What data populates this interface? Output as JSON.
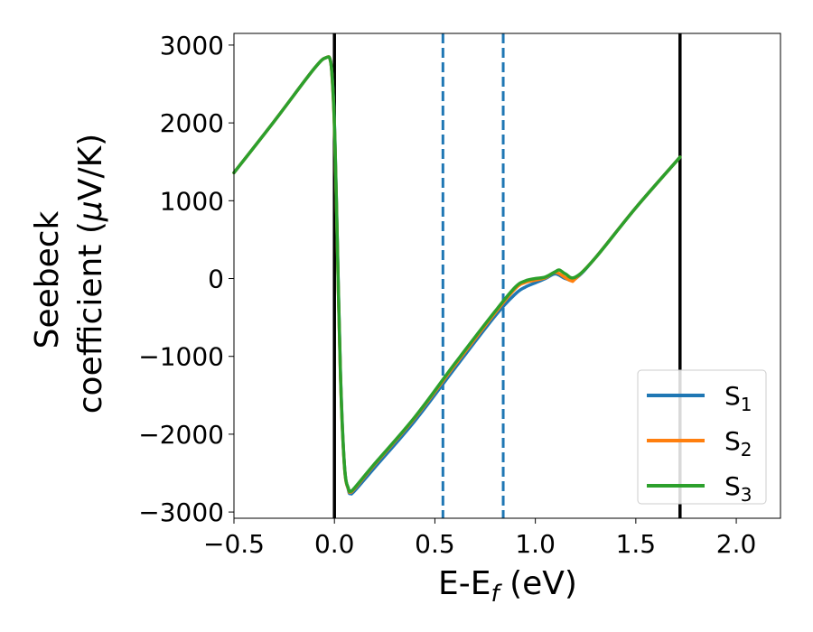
{
  "chart_data": {
    "type": "line",
    "xlabel": "E-E",
    "xlabel_sub": "f",
    "xlabel_unit": " (eV)",
    "ylabel_line1": "Seebeck",
    "ylabel_line2": "coefficient  (",
    "ylabel_mu": "μ",
    "ylabel_unit": "V/K)",
    "xlim": [
      -0.5,
      2.22
    ],
    "ylim": [
      -3080,
      3150
    ],
    "x_ticks": [
      -0.5,
      0.0,
      0.5,
      1.0,
      1.5,
      2.0
    ],
    "x_tick_labels": [
      "−0.5",
      "0.0",
      "0.5",
      "1.0",
      "1.5",
      "2.0"
    ],
    "y_ticks": [
      -3000,
      -2000,
      -1000,
      0,
      1000,
      2000,
      3000
    ],
    "y_tick_labels": [
      "−3000",
      "−2000",
      "−1000",
      "0",
      "1000",
      "2000",
      "3000"
    ],
    "vlines": [
      {
        "x": 0.0,
        "style": "solid",
        "color": "#000000"
      },
      {
        "x": 1.72,
        "style": "solid",
        "color": "#000000"
      },
      {
        "x": 0.54,
        "style": "dashed",
        "color": "#1f77b4"
      },
      {
        "x": 0.84,
        "style": "dashed",
        "color": "#1f77b4"
      }
    ],
    "legend": {
      "position": "lower-right"
    },
    "series": [
      {
        "name": "S",
        "sub": "1",
        "color": "#1f77b4",
        "x": [
          -0.5,
          -0.3,
          -0.1,
          -0.04,
          -0.02,
          -0.01,
          0.0,
          0.01,
          0.03,
          0.05,
          0.07,
          0.08,
          0.1,
          0.2,
          0.4,
          0.6,
          0.8,
          0.9,
          0.95,
          1.0,
          1.05,
          1.1,
          1.15,
          1.2,
          1.3,
          1.5,
          1.72
        ],
        "y": [
          1360,
          2020,
          2700,
          2840,
          2800,
          2550,
          2000,
          1000,
          -1200,
          -2400,
          -2720,
          -2760,
          -2730,
          -2430,
          -1830,
          -1150,
          -480,
          -200,
          -110,
          -55,
          0,
          60,
          0,
          0,
          270,
          910,
          1560
        ]
      },
      {
        "name": "S",
        "sub": "2",
        "color": "#ff7f0e",
        "x": [
          -0.5,
          -0.3,
          -0.1,
          -0.04,
          -0.02,
          -0.01,
          0.0,
          0.01,
          0.03,
          0.05,
          0.07,
          0.08,
          0.1,
          0.2,
          0.4,
          0.6,
          0.8,
          0.9,
          0.95,
          1.0,
          1.05,
          1.1,
          1.15,
          1.18,
          1.2,
          1.3,
          1.5,
          1.72
        ],
        "y": [
          1360,
          2020,
          2700,
          2840,
          2800,
          2520,
          1950,
          950,
          -1250,
          -2420,
          -2710,
          -2740,
          -2700,
          -2390,
          -1790,
          -1110,
          -440,
          -130,
          -50,
          -20,
          10,
          80,
          10,
          -30,
          0,
          270,
          910,
          1560
        ]
      },
      {
        "name": "S",
        "sub": "3",
        "color": "#2ca02c",
        "x": [
          -0.5,
          -0.3,
          -0.1,
          -0.04,
          -0.02,
          -0.01,
          0.0,
          0.01,
          0.03,
          0.05,
          0.07,
          0.08,
          0.1,
          0.2,
          0.4,
          0.6,
          0.8,
          0.9,
          0.95,
          1.0,
          1.05,
          1.1,
          1.12,
          1.15,
          1.2,
          1.3,
          1.5,
          1.72
        ],
        "y": [
          1360,
          2020,
          2700,
          2840,
          2800,
          2540,
          1980,
          980,
          -1230,
          -2410,
          -2700,
          -2730,
          -2690,
          -2380,
          -1780,
          -1090,
          -420,
          -110,
          -30,
          0,
          20,
          90,
          110,
          60,
          20,
          270,
          910,
          1560
        ]
      }
    ]
  }
}
